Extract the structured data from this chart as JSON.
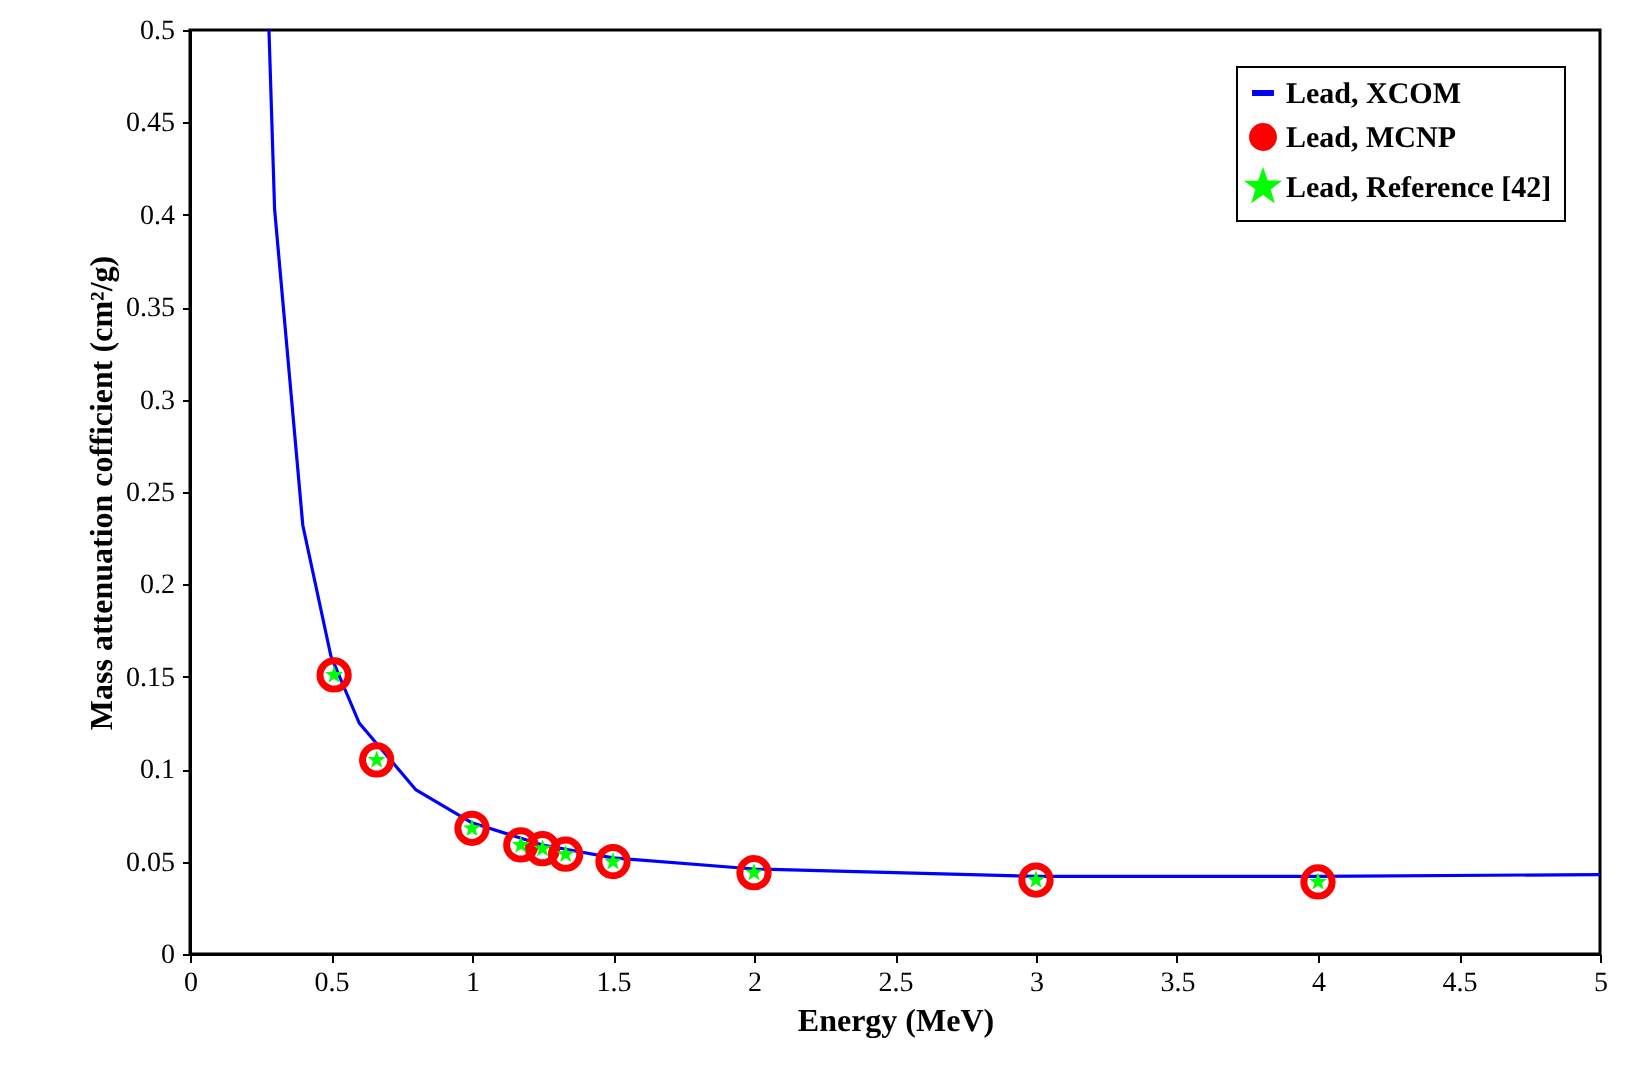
{
  "chart_data": {
    "type": "line",
    "xlabel": "Energy (MeV)",
    "ylabel": "Mass attenuation cofficient (cm²/g)",
    "xlim": [
      0,
      5
    ],
    "ylim": [
      0,
      0.5
    ],
    "xticks": [
      0,
      0.5,
      1,
      1.5,
      2,
      2.5,
      3,
      3.5,
      4,
      4.5,
      5
    ],
    "yticks": [
      0,
      0.05,
      0.1,
      0.15,
      0.2,
      0.25,
      0.3,
      0.35,
      0.4,
      0.45,
      0.5
    ],
    "grid": false,
    "legend": "top right",
    "series": [
      {
        "name": "Lead, XCOM",
        "color": "#0000ff",
        "marker": "none",
        "line_style": "solid",
        "x": [
          0.28,
          0.3,
          0.4,
          0.5,
          0.6,
          0.8,
          1,
          1.25,
          1.5,
          2,
          3,
          4,
          5
        ],
        "values": [
          0.5,
          0.403,
          0.232,
          0.161,
          0.125,
          0.089,
          0.071,
          0.059,
          0.052,
          0.046,
          0.042,
          0.042,
          0.043
        ]
      },
      {
        "name": "Lead, MCNP",
        "type": "scatter",
        "color": "#ff0000",
        "marker": "circle",
        "x": [
          0.511,
          0.662,
          1,
          1.173,
          1.25,
          1.332,
          1.5,
          2,
          3,
          4
        ],
        "values": [
          0.151,
          0.105,
          0.068,
          0.059,
          0.057,
          0.054,
          0.05,
          0.044,
          0.04,
          0.039
        ]
      },
      {
        "name": "Lead, Reference [42]",
        "type": "scatter",
        "color": "#00ff00",
        "marker": "star",
        "x": [
          0.511,
          0.662,
          1,
          1.173,
          1.25,
          1.332,
          1.5,
          2,
          3,
          4
        ],
        "values": [
          0.151,
          0.105,
          0.068,
          0.059,
          0.057,
          0.054,
          0.05,
          0.044,
          0.04,
          0.039
        ]
      }
    ]
  }
}
